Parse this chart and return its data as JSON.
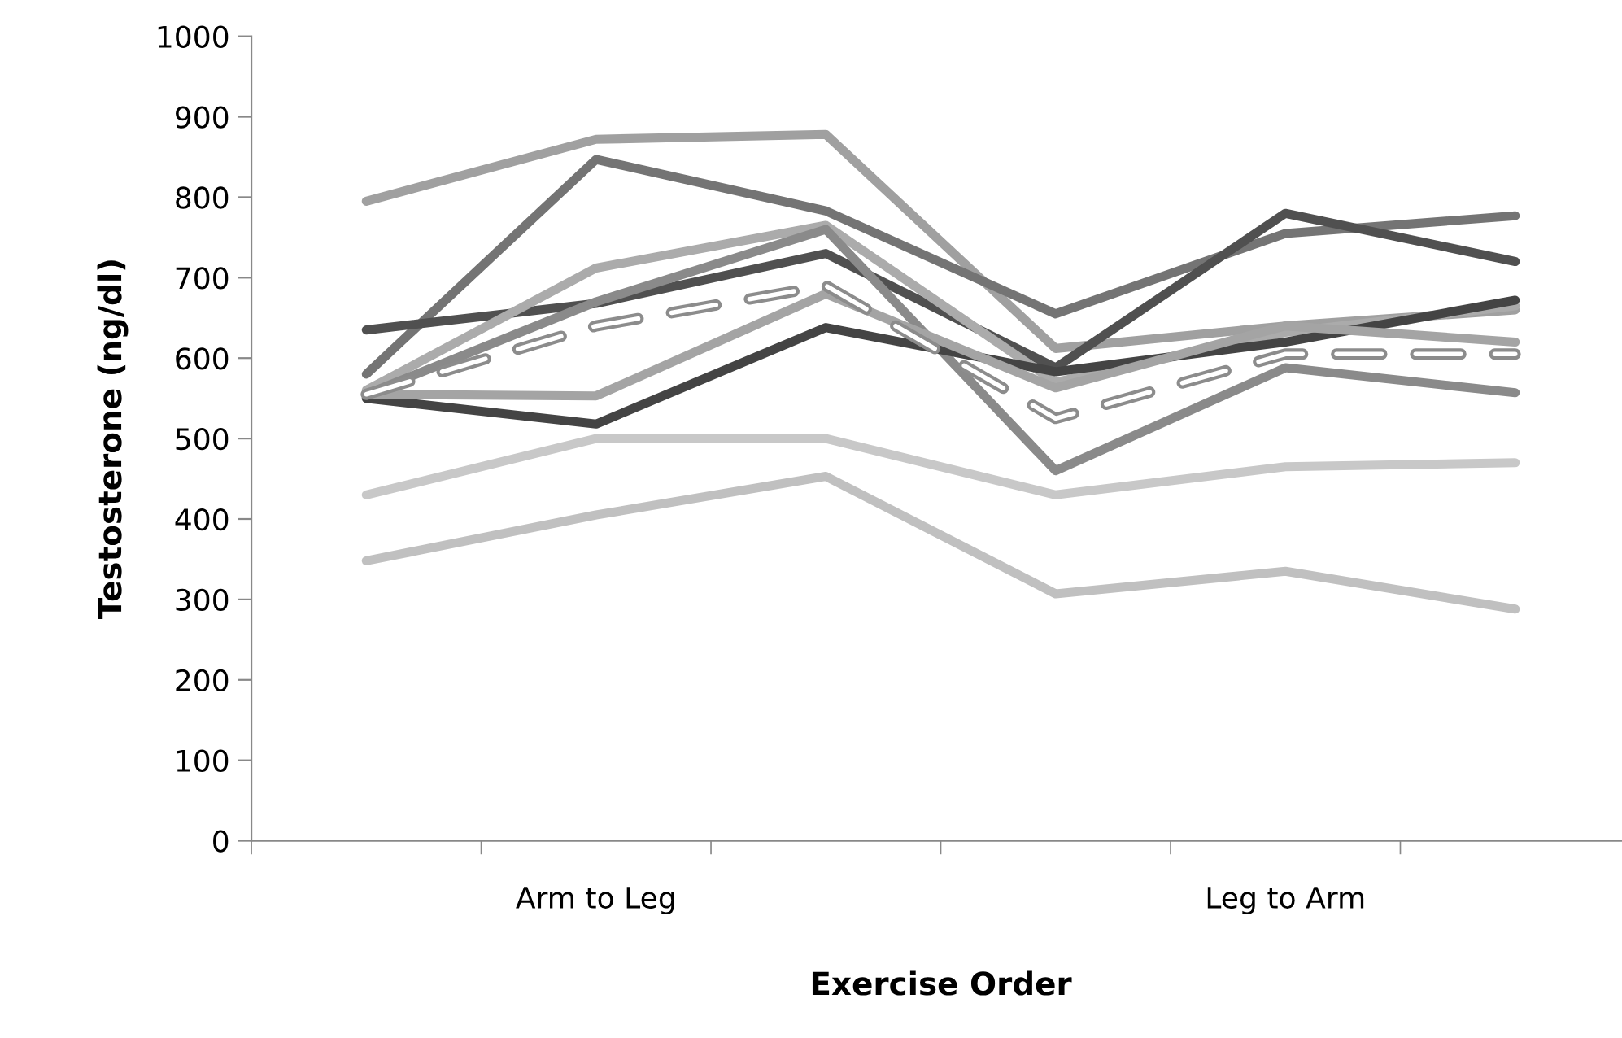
{
  "chart_data": {
    "type": "line",
    "xlabel": "Exercise Order",
    "ylabel": "Testosterone (ng/dl)",
    "categories": [
      null,
      "Arm to Leg",
      null,
      null,
      "Leg to Arm",
      null
    ],
    "ylim": [
      0,
      1000
    ],
    "yticks": [
      0,
      100,
      200,
      300,
      400,
      500,
      600,
      700,
      800,
      900,
      1000
    ],
    "grid": false,
    "legend": false,
    "series": [
      {
        "color": "#a0a0a0",
        "values": [
          795,
          872,
          878,
          612,
          640,
          660
        ]
      },
      {
        "color": "#747474",
        "values": [
          580,
          847,
          783,
          655,
          755,
          777
        ]
      },
      {
        "color": "#505050",
        "values": [
          635,
          668,
          730,
          588,
          780,
          720
        ]
      },
      {
        "color": "#ababab",
        "values": [
          560,
          712,
          765,
          570,
          632,
          665
        ]
      },
      {
        "color": "#8a8a8a",
        "values": [
          555,
          670,
          760,
          460,
          588,
          557
        ]
      },
      {
        "color": "#444444",
        "values": [
          550,
          518,
          638,
          583,
          620,
          672
        ]
      },
      {
        "color": "#a4a4a4",
        "values": [
          555,
          553,
          680,
          563,
          640,
          620
        ]
      },
      {
        "color": "#8c8c8c",
        "line_style": "dashed",
        "values": [
          555,
          640,
          690,
          525,
          605,
          605
        ]
      },
      {
        "color": "#c8c8c8",
        "values": [
          430,
          500,
          500,
          430,
          465,
          470
        ]
      },
      {
        "color": "#c0c0c0",
        "values": [
          348,
          405,
          453,
          307,
          335,
          288
        ]
      }
    ]
  }
}
